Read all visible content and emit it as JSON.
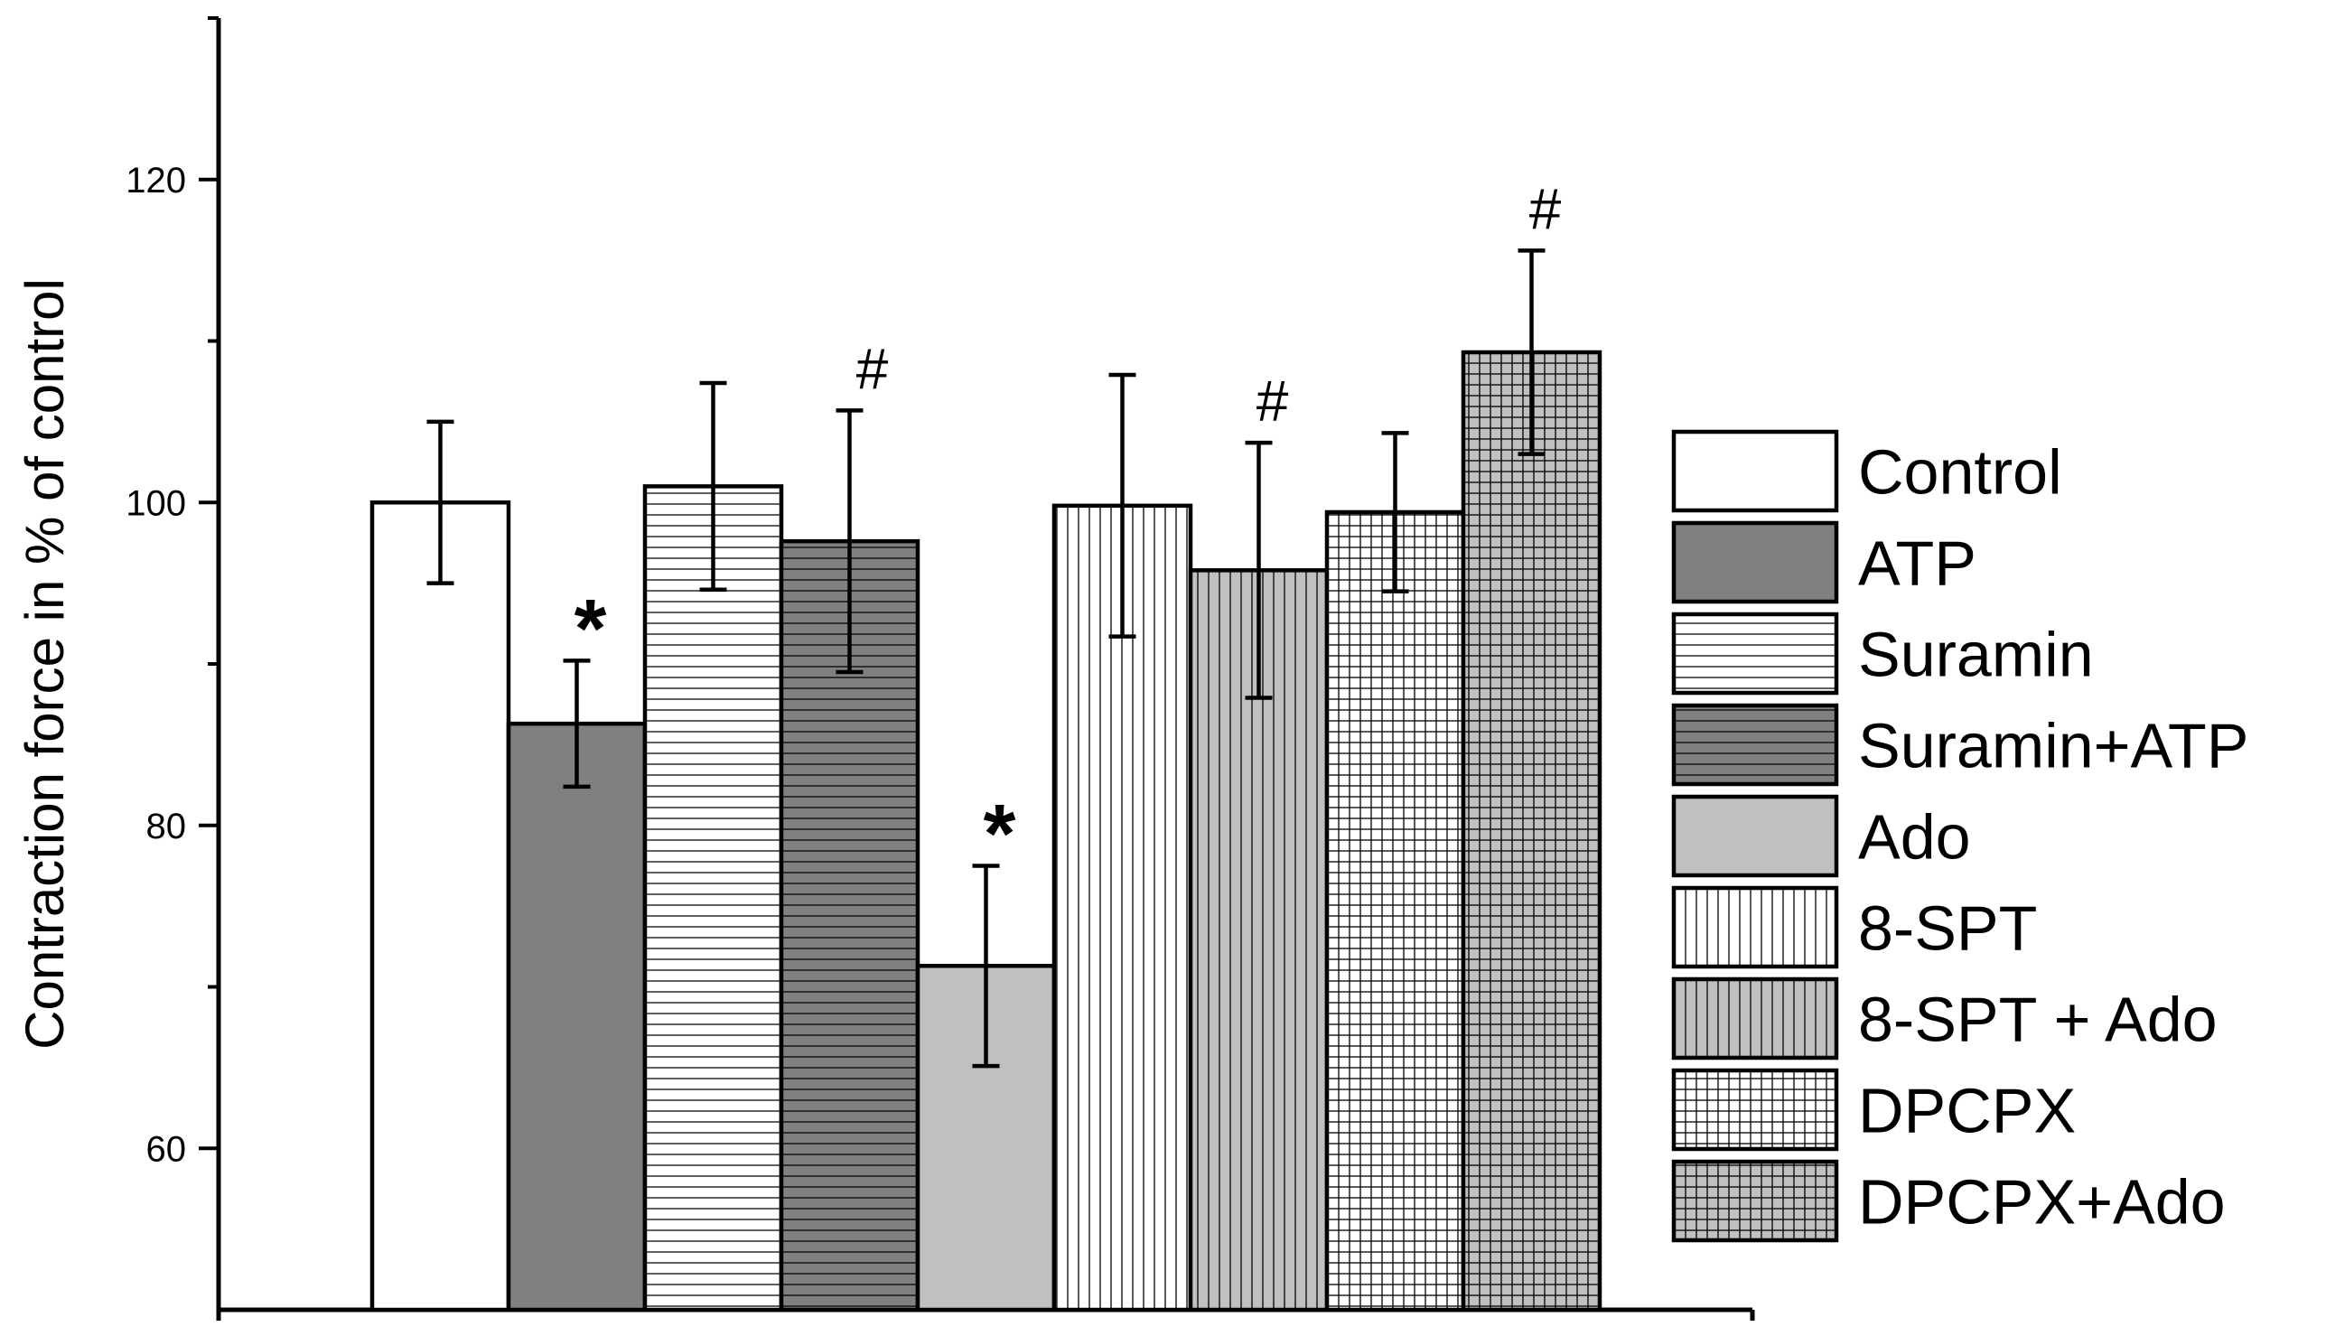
{
  "chart_data": {
    "type": "bar",
    "title": "",
    "xlabel": "",
    "ylabel": "Contraction force in % of control",
    "ylim": [
      50,
      130
    ],
    "yticks": [
      60,
      80,
      100,
      120
    ],
    "grid": false,
    "legend_position": "right",
    "categories": [
      "Control",
      "ATP",
      "Suramin",
      "Suramin+ATP",
      "Ado",
      "8-SPT",
      "8-SPT + Ado",
      "DPCPX",
      "DPCPX+Ado"
    ],
    "series": [
      {
        "name": "Control",
        "value": 100.0,
        "error": 5.0,
        "fill": "#ffffff",
        "pattern": "none",
        "annotation": ""
      },
      {
        "name": "ATP",
        "value": 86.3,
        "error": 3.9,
        "fill": "#808080",
        "pattern": "none",
        "annotation": "*"
      },
      {
        "name": "Suramin",
        "value": 101.0,
        "error": 6.4,
        "fill": "#ffffff",
        "pattern": "horizontal",
        "annotation": ""
      },
      {
        "name": "Suramin+ATP",
        "value": 97.6,
        "error": 8.1,
        "fill": "#808080",
        "pattern": "horizontal",
        "annotation": "#"
      },
      {
        "name": "Ado",
        "value": 71.3,
        "error": 6.2,
        "fill": "#c0c0c0",
        "pattern": "none",
        "annotation": "*"
      },
      {
        "name": "8-SPT",
        "value": 99.8,
        "error": 8.1,
        "fill": "#ffffff",
        "pattern": "vertical",
        "annotation": ""
      },
      {
        "name": "8-SPT + Ado",
        "value": 95.8,
        "error": 7.9,
        "fill": "#c0c0c0",
        "pattern": "vertical",
        "annotation": "#"
      },
      {
        "name": "DPCPX",
        "value": 99.4,
        "error": 4.9,
        "fill": "#ffffff",
        "pattern": "grid",
        "annotation": ""
      },
      {
        "name": "DPCPX+Ado",
        "value": 109.3,
        "error": 6.3,
        "fill": "#c0c0c0",
        "pattern": "grid",
        "annotation": "#"
      }
    ]
  }
}
